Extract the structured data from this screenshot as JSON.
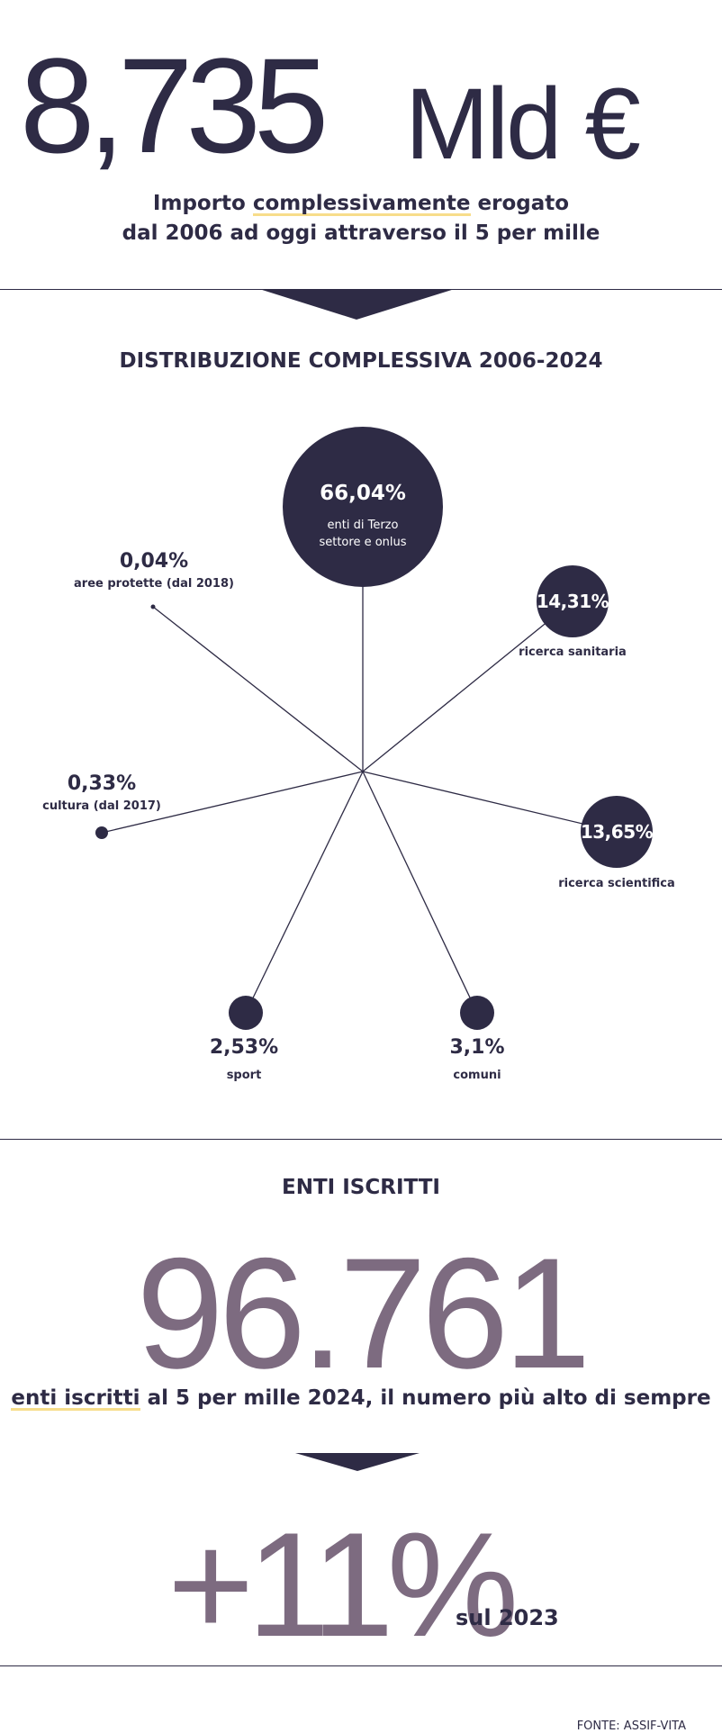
{
  "header": {
    "amount": "8,735",
    "unit": "Mld €",
    "subtitle_line1_pre": "Importo ",
    "subtitle_line1_highlight": "complessivamente",
    "subtitle_line1_post": " erogato",
    "subtitle_line2": "dal 2006 ad oggi attraverso il 5 per mille"
  },
  "distribution": {
    "title": "DISTRIBUZIONE COMPLESSIVA 2006-2024"
  },
  "chart_data": {
    "type": "radial-bubble",
    "title": "DISTRIBUZIONE COMPLESSIVA 2006-2024",
    "unit": "%",
    "items": [
      {
        "label": "enti di Terzo settore e onlus",
        "label_lines": [
          "enti di Terzo",
          "settore e onlus"
        ],
        "value": 66.04,
        "display": "66,04%"
      },
      {
        "label": "ricerca sanitaria",
        "value": 14.31,
        "display": "14,31%"
      },
      {
        "label": "ricerca scientifica",
        "value": 13.65,
        "display": "13,65%"
      },
      {
        "label": "comuni",
        "value": 3.1,
        "display": "3,1%"
      },
      {
        "label": "sport",
        "value": 2.53,
        "display": "2,53%"
      },
      {
        "label": "cultura (dal 2017)",
        "value": 0.33,
        "display": "0,33%"
      },
      {
        "label": "aree protette (dal 2018)",
        "value": 0.04,
        "display": "0,04%"
      }
    ]
  },
  "enrolled": {
    "title": "ENTI ISCRITTI",
    "number": "96.761",
    "caption_highlight": "enti iscritti",
    "caption_rest": " al 5 per mille 2024, il numero più alto di sempre",
    "growth": "+11%",
    "growth_suffix": "sul 2023"
  },
  "footer": {
    "source": "FONTE: ASSIF-VITA"
  },
  "colors": {
    "navy": "#2e2b45",
    "mauve": "#7d6b80",
    "highlight": "#f7dd8a"
  }
}
